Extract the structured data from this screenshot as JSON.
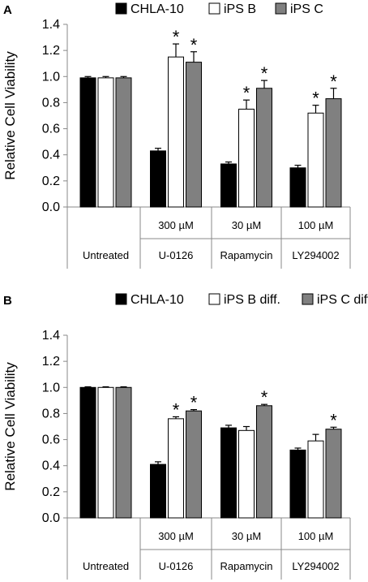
{
  "chart_data": [
    {
      "panel_label": "A",
      "type": "bar",
      "ylabel": "Relative Cell Viability",
      "ylim": [
        0,
        1.4
      ],
      "yticks": [
        "0.0",
        "0.2",
        "0.4",
        "0.6",
        "0.8",
        "1.0",
        "1.2",
        "1.4"
      ],
      "grid": false,
      "legend_placement": "top",
      "categories": [
        "Untreated",
        "U-0126",
        "Rapamycin",
        "LY294002"
      ],
      "concentrations": [
        "",
        "300 µM",
        "30 µM",
        "100 µM"
      ],
      "series": [
        {
          "name": "CHLA-10",
          "color": "#000000",
          "values": [
            0.99,
            0.43,
            0.33,
            0.3
          ],
          "errors": [
            0.01,
            0.02,
            0.015,
            0.02
          ],
          "significant": [
            false,
            false,
            false,
            false
          ]
        },
        {
          "name": "iPS B",
          "color": "#ffffff",
          "values": [
            0.99,
            1.15,
            0.75,
            0.72
          ],
          "errors": [
            0.01,
            0.1,
            0.07,
            0.06
          ],
          "significant": [
            false,
            true,
            true,
            true
          ]
        },
        {
          "name": "iPS C",
          "color": "#808080",
          "values": [
            0.99,
            1.11,
            0.91,
            0.83
          ],
          "errors": [
            0.01,
            0.08,
            0.06,
            0.08
          ],
          "significant": [
            false,
            true,
            true,
            true
          ]
        }
      ],
      "significance_mark": "*"
    },
    {
      "panel_label": "B",
      "type": "bar",
      "ylabel": "Relative Cell Viability",
      "ylim": [
        0,
        1.4
      ],
      "yticks": [
        "0.0",
        "0.2",
        "0.4",
        "0.6",
        "0.8",
        "1.0",
        "1.2",
        "1.4"
      ],
      "grid": false,
      "legend_placement": "top",
      "categories": [
        "Untreated",
        "U-0126",
        "Rapamycin",
        "LY294002"
      ],
      "concentrations": [
        "",
        "300 µM",
        "30 µM",
        "100 µM"
      ],
      "series": [
        {
          "name": "CHLA-10",
          "color": "#000000",
          "values": [
            1.0,
            0.41,
            0.69,
            0.52
          ],
          "errors": [
            0.005,
            0.02,
            0.02,
            0.015
          ],
          "significant": [
            false,
            false,
            false,
            false
          ]
        },
        {
          "name": "iPS B diff.",
          "color": "#ffffff",
          "values": [
            1.0,
            0.76,
            0.67,
            0.59
          ],
          "errors": [
            0.005,
            0.015,
            0.03,
            0.05
          ],
          "significant": [
            false,
            true,
            false,
            false
          ]
        },
        {
          "name": "iPS C diff.",
          "color": "#808080",
          "values": [
            1.0,
            0.82,
            0.86,
            0.68
          ],
          "errors": [
            0.005,
            0.01,
            0.01,
            0.015
          ],
          "significant": [
            false,
            true,
            true,
            true
          ]
        }
      ],
      "significance_mark": "*"
    }
  ]
}
